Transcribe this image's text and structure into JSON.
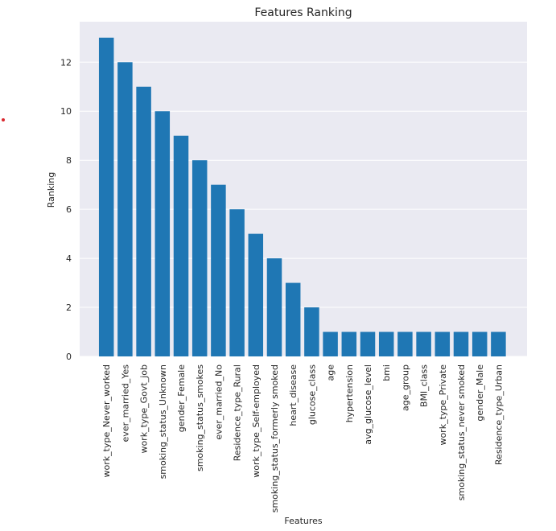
{
  "chart_data": {
    "type": "bar",
    "title": "Features Ranking",
    "xlabel": "Features",
    "ylabel": "Ranking",
    "ylim": [
      0,
      13.65
    ],
    "yticks": [
      0,
      2,
      4,
      6,
      8,
      10,
      12
    ],
    "grid": true,
    "bar_color": "#1f77b4",
    "background_color": "#eaeaf2",
    "categories": [
      "work_type_Never_worked",
      "ever_married_Yes",
      "work_type_Govt_job",
      "smoking_status_Unknown",
      "gender_Female",
      "smoking_status_smokes",
      "ever_married_No",
      "Residence_type_Rural",
      "work_type_Self-employed",
      "smoking_status_formerly smoked",
      "heart_disease",
      "glucose_class",
      "age",
      "hypertension",
      "avg_glucose_level",
      "bmi",
      "age_group",
      "BMI_class",
      "work_type_Private",
      "smoking_status_never smoked",
      "gender_Male",
      "Residence_type_Urban"
    ],
    "values": [
      13,
      12,
      11,
      10,
      9,
      8,
      7,
      6,
      5,
      4,
      3,
      2,
      1,
      1,
      1,
      1,
      1,
      1,
      1,
      1,
      1,
      1
    ]
  }
}
